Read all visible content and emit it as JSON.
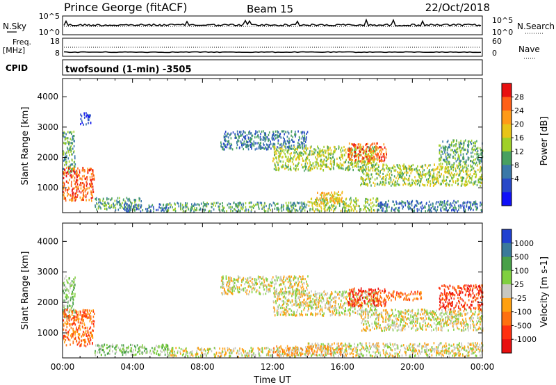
{
  "header": {
    "station": "Prince George (fitACF)",
    "beam": "Beam 15",
    "date": "22/Oct/2018"
  },
  "aux_panels": {
    "nsky_label": "N.Sky",
    "nsky_left_ticks": [
      "10^5",
      "10^0"
    ],
    "nsky_right_ticks": [
      "10^5",
      "10^0"
    ],
    "nsearch_label": "N.Search",
    "freq_label": "Freq.",
    "freq_unit": "[MHz]",
    "freq_ticks": [
      "18",
      "8"
    ],
    "nave_label": "Nave",
    "nave_ticks": [
      "60",
      "0"
    ],
    "cpid_label": "CPID",
    "cpid_value": "twofsound (1-min) -3505"
  },
  "chart_data": [
    {
      "type": "heatmap",
      "name": "power",
      "ylabel": "Slant Range [km]",
      "yticks": [
        1000,
        2000,
        3000,
        4000
      ],
      "ylim": [
        180,
        4600
      ],
      "xlim": [
        0,
        24
      ],
      "xticks": [
        "00:00",
        "04:00",
        "08:00",
        "12:00",
        "16:00",
        "20:00",
        "00:00"
      ],
      "colorbar": {
        "label": "Power [dB]",
        "ticks": [
          "28",
          "24",
          "20",
          "16",
          "12",
          "8",
          "4"
        ],
        "colors": [
          "#e81010",
          "#ff6018",
          "#ff9a18",
          "#e8c418",
          "#a0d028",
          "#48a060",
          "#3a78a8",
          "#2848c8",
          "#1010f8"
        ]
      },
      "echo_regions": [
        {
          "t0": 0.0,
          "t1": 0.7,
          "r0": 1500,
          "r1": 2900,
          "level": 5
        },
        {
          "t0": 0.0,
          "t1": 1.8,
          "r0": 600,
          "r1": 1700,
          "level": 1
        },
        {
          "t0": 1.0,
          "t1": 1.6,
          "r0": 3100,
          "r1": 3500,
          "level": 7
        },
        {
          "t0": 1.8,
          "t1": 4.5,
          "r0": 300,
          "r1": 700,
          "level": 5
        },
        {
          "t0": 3.5,
          "t1": 6.0,
          "r0": 250,
          "r1": 500,
          "level": 6
        },
        {
          "t0": 6.0,
          "t1": 14.0,
          "r0": 250,
          "r1": 550,
          "level": 5
        },
        {
          "t0": 14.0,
          "t1": 18.0,
          "r0": 250,
          "r1": 700,
          "level": 4
        },
        {
          "t0": 18.0,
          "t1": 24.0,
          "r0": 250,
          "r1": 600,
          "level": 6
        },
        {
          "t0": 9.0,
          "t1": 14.0,
          "r0": 2300,
          "r1": 2900,
          "level": 6
        },
        {
          "t0": 12.0,
          "t1": 18.0,
          "r0": 1600,
          "r1": 2400,
          "level": 4
        },
        {
          "t0": 16.3,
          "t1": 18.5,
          "r0": 1900,
          "r1": 2500,
          "level": 1
        },
        {
          "t0": 17.0,
          "t1": 24.0,
          "r0": 1100,
          "r1": 1800,
          "level": 4
        },
        {
          "t0": 21.5,
          "t1": 24.0,
          "r0": 1800,
          "r1": 2600,
          "level": 5
        },
        {
          "t0": 14.5,
          "t1": 16.0,
          "r0": 500,
          "r1": 900,
          "level": 3
        }
      ]
    },
    {
      "type": "heatmap",
      "name": "velocity",
      "ylabel": "Slant Range [km]",
      "yticks": [
        1000,
        2000,
        3000,
        4000
      ],
      "ylim": [
        180,
        4600
      ],
      "xlabel": "Time UT",
      "xlim": [
        0,
        24
      ],
      "xticks": [
        "00:00",
        "04:00",
        "08:00",
        "12:00",
        "16:00",
        "20:00",
        "00:00"
      ],
      "colorbar": {
        "label": "Velocity [m s-1]",
        "ticks": [
          "1000",
          "500",
          "100",
          "25",
          "-25",
          "-100",
          "-500",
          "-1000"
        ],
        "colors": [
          "#2040d0",
          "#3a7a9a",
          "#48a048",
          "#80d040",
          "#c8c8c0",
          "#ffa010",
          "#ff7010",
          "#ff3010",
          "#e81010"
        ]
      },
      "echo_regions": [
        {
          "t0": 0.0,
          "t1": 0.7,
          "r0": 1500,
          "r1": 2900,
          "level": 3
        },
        {
          "t0": 0.0,
          "t1": 1.8,
          "r0": 600,
          "r1": 1800,
          "level": 6
        },
        {
          "t0": 1.8,
          "t1": 6.0,
          "r0": 300,
          "r1": 650,
          "level": 3
        },
        {
          "t0": 6.0,
          "t1": 14.0,
          "r0": 250,
          "r1": 550,
          "level": 4
        },
        {
          "t0": 9.0,
          "t1": 14.0,
          "r0": 2300,
          "r1": 2900,
          "level": 4
        },
        {
          "t0": 12.0,
          "t1": 18.0,
          "r0": 1600,
          "r1": 2400,
          "level": 4
        },
        {
          "t0": 16.3,
          "t1": 18.5,
          "r0": 1900,
          "r1": 2500,
          "level": 7
        },
        {
          "t0": 18.5,
          "t1": 20.5,
          "r0": 2100,
          "r1": 2400,
          "level": 6
        },
        {
          "t0": 17.0,
          "t1": 24.0,
          "r0": 1100,
          "r1": 1800,
          "level": 4
        },
        {
          "t0": 21.5,
          "t1": 24.0,
          "r0": 1800,
          "r1": 2600,
          "level": 7
        },
        {
          "t0": 14.0,
          "t1": 24.0,
          "r0": 250,
          "r1": 700,
          "level": 4
        },
        {
          "t0": 12.0,
          "t1": 16.0,
          "r0": 300,
          "r1": 600,
          "level": 5
        }
      ]
    }
  ]
}
